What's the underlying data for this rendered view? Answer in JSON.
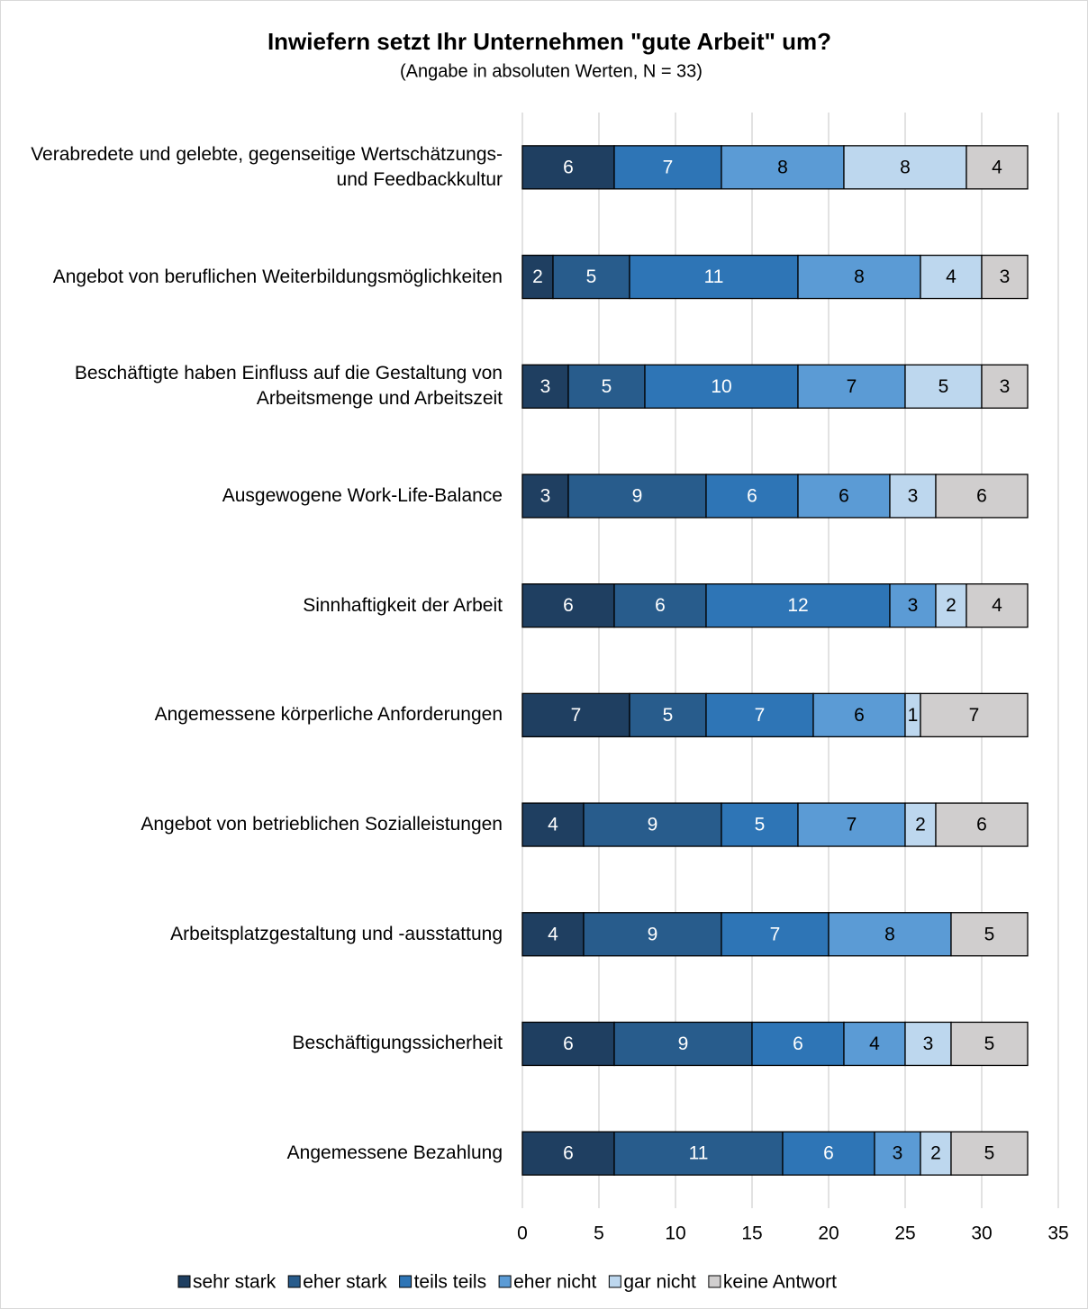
{
  "chart_data": {
    "type": "stacked_barh",
    "title": "Inwiefern setzt Ihr Unternehmen \"gute Arbeit\" um?",
    "subtitle": "(Angabe in absoluten Werten, N = 33)",
    "categories": [
      "Verabredete und gelebte, gegenseitige Wertschätzungs-\nund Feedbackkultur",
      "Angebot von beruflichen Weiterbildungsmöglichkeiten",
      "Beschäftigte haben Einfluss auf die Gestaltung von\nArbeitsmenge und Arbeitszeit",
      "Ausgewogene Work-Life-Balance",
      "Sinnhaftigkeit der Arbeit",
      "Angemessene körperliche Anforderungen",
      "Angebot von betrieblichen Sozialleistungen",
      "Arbeitsplatzgestaltung und -ausstattung",
      "Beschäftigungssicherheit",
      "Angemessene Bezahlung"
    ],
    "series": [
      {
        "name": "sehr stark",
        "color": "#1f3f61",
        "values": [
          6,
          2,
          3,
          3,
          6,
          7,
          4,
          4,
          6,
          6
        ]
      },
      {
        "name": "eher stark",
        "color": "#285c8c",
        "values": [
          0,
          5,
          5,
          9,
          6,
          5,
          9,
          9,
          9,
          11
        ]
      },
      {
        "name": "teils teils",
        "color": "#2e75b6",
        "values": [
          7,
          11,
          10,
          6,
          12,
          7,
          5,
          7,
          6,
          6
        ]
      },
      {
        "name": "eher nicht",
        "color": "#5b9bd5",
        "values": [
          8,
          8,
          7,
          6,
          3,
          6,
          7,
          8,
          4,
          3
        ]
      },
      {
        "name": "gar nicht",
        "color": "#bdd7ee",
        "values": [
          8,
          4,
          5,
          3,
          2,
          1,
          2,
          0,
          3,
          2
        ]
      },
      {
        "name": "keine Antwort",
        "color": "#d0cece",
        "values": [
          4,
          3,
          3,
          6,
          4,
          7,
          6,
          5,
          5,
          5
        ]
      }
    ],
    "xlim": [
      0,
      35
    ],
    "xticks": [
      0,
      5,
      10,
      15,
      20,
      25,
      30,
      35
    ],
    "grid": true,
    "legend": "bottom"
  }
}
